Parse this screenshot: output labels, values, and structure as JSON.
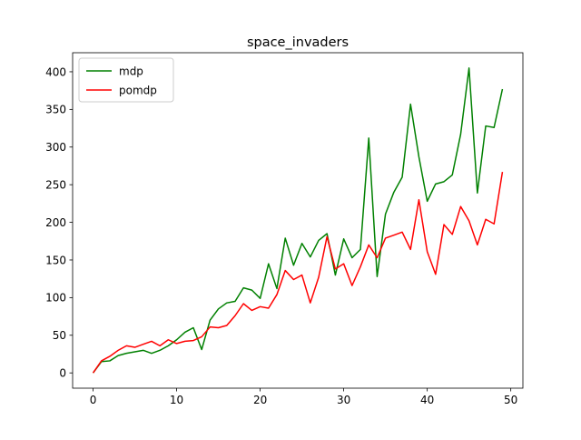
{
  "chart_data": {
    "type": "line",
    "title": "space_invaders",
    "xlabel": "",
    "ylabel": "",
    "xlim": [
      -2.45,
      51.45
    ],
    "ylim": [
      -20.3,
      425.3
    ],
    "xticks": [
      0,
      10,
      20,
      30,
      40,
      50
    ],
    "yticks": [
      0,
      50,
      100,
      150,
      200,
      250,
      300,
      350,
      400
    ],
    "grid": false,
    "legend_position": "top-left",
    "series": [
      {
        "name": "mdp",
        "color": "#008000",
        "x": [
          0,
          1,
          2,
          3,
          4,
          5,
          6,
          7,
          8,
          9,
          10,
          11,
          12,
          13,
          14,
          15,
          16,
          17,
          18,
          19,
          20,
          21,
          22,
          23,
          24,
          25,
          26,
          27,
          28,
          29,
          30,
          31,
          32,
          33,
          34,
          35,
          36,
          37,
          38,
          39,
          40,
          41,
          42,
          43,
          44,
          45,
          46,
          47,
          48,
          49
        ],
        "values": [
          0,
          15,
          16,
          23,
          26,
          28,
          30,
          26,
          30,
          36,
          44,
          54,
          60,
          31,
          70,
          85,
          93,
          95,
          113,
          110,
          99,
          145,
          112,
          179,
          143,
          172,
          154,
          176,
          185,
          130,
          178,
          153,
          164,
          312,
          128,
          211,
          240,
          260,
          357,
          287,
          228,
          251,
          254,
          263,
          317,
          405,
          239,
          328,
          326,
          377
        ]
      },
      {
        "name": "pomdp",
        "color": "#ff0000",
        "x": [
          0,
          1,
          2,
          3,
          4,
          5,
          6,
          7,
          8,
          9,
          10,
          11,
          12,
          13,
          14,
          15,
          16,
          17,
          18,
          19,
          20,
          21,
          22,
          23,
          24,
          25,
          26,
          27,
          28,
          29,
          30,
          31,
          32,
          33,
          34,
          35,
          36,
          37,
          38,
          39,
          40,
          41,
          42,
          43,
          44,
          45,
          46,
          47,
          48,
          49
        ],
        "values": [
          0,
          16,
          22,
          30,
          36,
          34,
          38,
          42,
          36,
          44,
          39,
          42,
          43,
          48,
          61,
          60,
          63,
          76,
          92,
          83,
          88,
          86,
          104,
          136,
          124,
          130,
          93,
          127,
          181,
          138,
          145,
          116,
          141,
          170,
          153,
          179,
          183,
          187,
          164,
          230,
          161,
          131,
          197,
          184,
          221,
          202,
          170,
          204,
          198,
          267
        ]
      }
    ]
  }
}
